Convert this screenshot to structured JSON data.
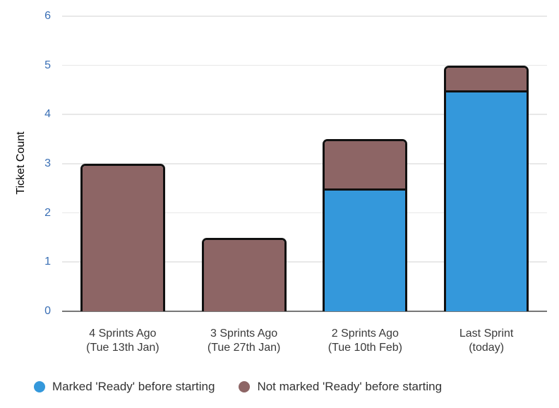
{
  "chart_data": {
    "type": "bar",
    "stacked": true,
    "title": "",
    "xlabel": "",
    "ylabel": "Ticket Count",
    "ylim": [
      0,
      6
    ],
    "yticks": [
      0,
      1,
      2,
      3,
      4,
      5,
      6
    ],
    "grid": true,
    "legend_position": "bottom",
    "categories": [
      {
        "label": "4 Sprints Ago",
        "sublabel": "(Tue 13th Jan)"
      },
      {
        "label": "3 Sprints Ago",
        "sublabel": "(Tue 27th Jan)"
      },
      {
        "label": "2 Sprints Ago",
        "sublabel": "(Tue 10th Feb)"
      },
      {
        "label": "Last Sprint",
        "sublabel": "(today)"
      }
    ],
    "series": [
      {
        "name": "Marked 'Ready' before starting",
        "color": "#3498DB",
        "values": [
          0,
          0,
          2.5,
          4.5
        ]
      },
      {
        "name": "Not marked 'Ready' before starting",
        "color": "#8D6565",
        "values": [
          3,
          1.5,
          1,
          0.5
        ]
      }
    ],
    "totals": [
      3,
      1.5,
      3.5,
      5
    ]
  },
  "colors": {
    "axis_label_blue": "#3A6FB5",
    "gridline": "#E8E8E8",
    "baseline": "#777777",
    "bar_border": "#111111",
    "x_label_text": "#3A3A3A",
    "legend_text": "#333333",
    "background": "#FFFFFF"
  }
}
